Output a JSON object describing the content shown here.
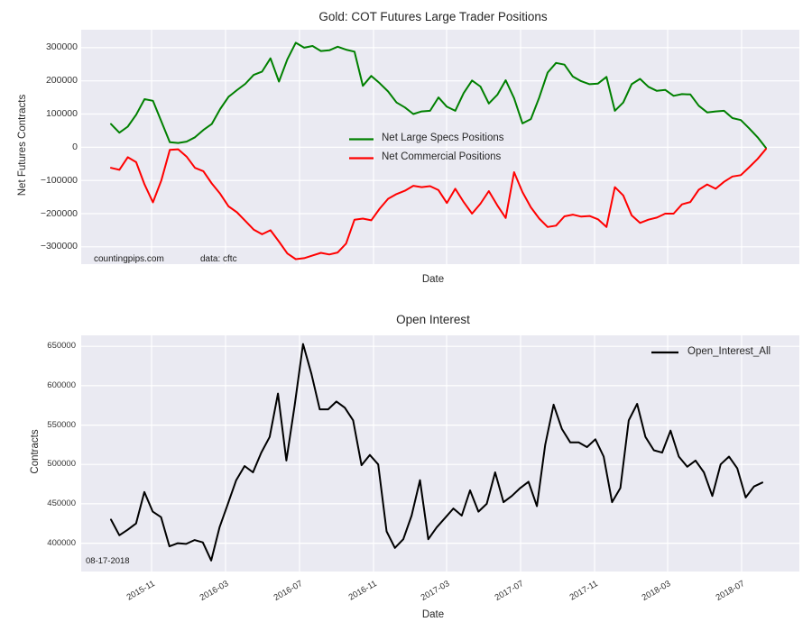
{
  "figure": {
    "background": "#ffffff",
    "plot_background": "#eaeaf2",
    "grid_color": "#ffffff",
    "text_color": "#262626",
    "tick_color": "#333333"
  },
  "chart_data": [
    {
      "type": "line",
      "title": "Gold: COT Futures Large Trader Positions",
      "xlabel": "Date",
      "ylabel": "Net Futures Contracts",
      "grid": true,
      "legend_position": "center",
      "ylim": [
        -352000,
        354000
      ],
      "yticks": [
        300000,
        200000,
        100000,
        0,
        -100000,
        -200000,
        -300000
      ],
      "ytick_labels": [
        "300000",
        "200000",
        "100000",
        "0",
        "−100000",
        "−200000",
        "−300000"
      ],
      "xtick_labels": [],
      "annotations": [
        {
          "text": "countingpips.com"
        },
        {
          "text": "data: cftc"
        }
      ],
      "legend": {
        "entries": [
          {
            "label": "Net Large Specs Positions",
            "color": "#008000"
          },
          {
            "label": "Net Commercial Positions",
            "color": "#ff0000"
          }
        ]
      },
      "series": [
        {
          "name": "Net Large Specs Positions",
          "color": "#008000",
          "values": [
            70000,
            44000,
            62000,
            98000,
            145000,
            140000,
            78000,
            15000,
            13000,
            17000,
            30000,
            52000,
            70000,
            115000,
            152000,
            172000,
            191000,
            218000,
            228000,
            268000,
            198000,
            265000,
            315000,
            300000,
            305000,
            290000,
            292000,
            303000,
            294000,
            288000,
            185000,
            215000,
            193000,
            168000,
            135000,
            120000,
            100000,
            108000,
            110000,
            150000,
            122000,
            110000,
            163000,
            201000,
            183000,
            132000,
            158000,
            202000,
            148000,
            72000,
            85000,
            150000,
            225000,
            254000,
            249000,
            213000,
            199000,
            190000,
            192000,
            212000,
            110000,
            135000,
            190000,
            206000,
            182000,
            170000,
            173000,
            155000,
            160000,
            159000,
            125000,
            105000,
            108000,
            110000,
            88000,
            82000,
            57000,
            30000,
            -2000
          ]
        },
        {
          "name": "Net Commercial Positions",
          "color": "#ff0000",
          "values": [
            -62000,
            -68000,
            -30000,
            -45000,
            -112000,
            -166000,
            -100000,
            -8000,
            -6000,
            -28000,
            -62000,
            -72000,
            -109000,
            -140000,
            -178000,
            -196000,
            -222000,
            -248000,
            -262000,
            -250000,
            -284000,
            -320000,
            -337000,
            -334000,
            -326000,
            -318000,
            -323000,
            -317000,
            -290000,
            -218000,
            -215000,
            -220000,
            -185000,
            -155000,
            -141000,
            -131000,
            -116000,
            -120000,
            -117000,
            -129000,
            -168000,
            -125000,
            -165000,
            -200000,
            -170000,
            -132000,
            -175000,
            -213000,
            -75000,
            -135000,
            -181000,
            -215000,
            -240000,
            -236000,
            -208000,
            -203000,
            -209000,
            -207000,
            -217000,
            -240000,
            -120000,
            -145000,
            -205000,
            -228000,
            -218000,
            -212000,
            -200000,
            -200000,
            -172000,
            -165000,
            -128000,
            -112000,
            -125000,
            -104000,
            -88000,
            -84000,
            -60000,
            -35000,
            -5000
          ]
        }
      ]
    },
    {
      "type": "line",
      "title": "Open Interest",
      "xlabel": "Date",
      "ylabel": "Contracts",
      "grid": true,
      "legend_position": "upper right",
      "ylim": [
        364000,
        664000
      ],
      "yticks": [
        650000,
        600000,
        550000,
        500000,
        450000,
        400000
      ],
      "ytick_labels": [
        "650000",
        "600000",
        "550000",
        "500000",
        "450000",
        "400000"
      ],
      "xtick_labels": [
        "2015-11",
        "2016-03",
        "2016-07",
        "2016-11",
        "2017-03",
        "2017-07",
        "2017-11",
        "2018-03",
        "2018-07"
      ],
      "annotations": [
        {
          "text": "08-17-2018"
        }
      ],
      "legend": {
        "entries": [
          {
            "label": "Open_Interest_All",
            "color": "#000000"
          }
        ]
      },
      "series": [
        {
          "name": "Open_Interest_All",
          "color": "#000000",
          "values": [
            430000,
            410000,
            417000,
            425000,
            465000,
            440000,
            433000,
            396000,
            400000,
            399000,
            404000,
            401000,
            378000,
            420000,
            450000,
            480000,
            498000,
            490000,
            515000,
            535000,
            590000,
            505000,
            575000,
            653000,
            615000,
            570000,
            570000,
            580000,
            572000,
            556000,
            499000,
            512000,
            500000,
            415000,
            394000,
            405000,
            435000,
            480000,
            405000,
            420000,
            432000,
            444000,
            435000,
            467000,
            440000,
            450000,
            490000,
            452000,
            460000,
            470000,
            478000,
            447000,
            525000,
            576000,
            545000,
            528000,
            528000,
            522000,
            532000,
            510000,
            452000,
            470000,
            556000,
            577000,
            535000,
            518000,
            515000,
            543000,
            510000,
            497000,
            505000,
            490000,
            460000,
            500000,
            510000,
            495000,
            458000,
            472000,
            477000
          ]
        }
      ]
    }
  ]
}
